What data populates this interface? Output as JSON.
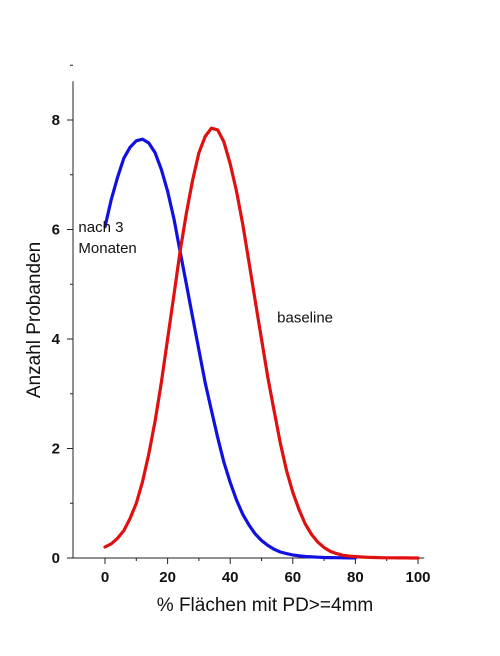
{
  "chart_data": {
    "type": "line",
    "xlabel": "% Flächen mit PD>=4mm",
    "ylabel": "Anzahl Probanden",
    "xlim": [
      -10,
      102
    ],
    "ylim": [
      0,
      9
    ],
    "xticks": [
      0,
      20,
      40,
      60,
      80,
      100
    ],
    "yticks": [
      0,
      2,
      4,
      6,
      8
    ],
    "grid": false,
    "series": [
      {
        "name": "nach 3 Monaten",
        "color": "#1010e0",
        "x": [
          0,
          2,
          4,
          6,
          8,
          10,
          12,
          14,
          16,
          18,
          20,
          22,
          24,
          26,
          28,
          30,
          32,
          34,
          36,
          38,
          40,
          42,
          44,
          46,
          48,
          50,
          52,
          54,
          56,
          58,
          60,
          62,
          64,
          66,
          68,
          70,
          72,
          74,
          76,
          78,
          80
        ],
        "y": [
          6.05,
          6.55,
          6.95,
          7.3,
          7.5,
          7.62,
          7.65,
          7.58,
          7.4,
          7.1,
          6.7,
          6.2,
          5.6,
          5.0,
          4.4,
          3.8,
          3.2,
          2.7,
          2.2,
          1.75,
          1.38,
          1.06,
          0.8,
          0.6,
          0.44,
          0.32,
          0.23,
          0.16,
          0.11,
          0.08,
          0.055,
          0.04,
          0.028,
          0.02,
          0.014,
          0.01,
          0.007,
          0.005,
          0.003,
          0.002,
          0.001
        ]
      },
      {
        "name": "baseline",
        "color": "#e01010",
        "x": [
          0,
          2,
          4,
          6,
          8,
          10,
          12,
          14,
          16,
          18,
          20,
          22,
          24,
          26,
          28,
          30,
          32,
          34,
          36,
          38,
          40,
          42,
          44,
          46,
          48,
          50,
          52,
          54,
          56,
          58,
          60,
          62,
          64,
          66,
          68,
          70,
          72,
          74,
          76,
          78,
          80,
          82,
          84,
          86,
          88,
          90,
          92,
          94,
          96,
          98,
          100
        ],
        "y": [
          0.2,
          0.26,
          0.36,
          0.5,
          0.72,
          1.0,
          1.4,
          1.9,
          2.5,
          3.2,
          4.0,
          4.8,
          5.6,
          6.3,
          6.9,
          7.4,
          7.7,
          7.85,
          7.82,
          7.6,
          7.2,
          6.7,
          6.1,
          5.4,
          4.7,
          4.0,
          3.3,
          2.7,
          2.1,
          1.6,
          1.2,
          0.88,
          0.62,
          0.43,
          0.29,
          0.19,
          0.12,
          0.08,
          0.05,
          0.035,
          0.025,
          0.018,
          0.013,
          0.009,
          0.006,
          0.004,
          0.003,
          0.002,
          0.001,
          0.0005,
          0.0
        ]
      }
    ],
    "annotations": [
      {
        "lines": [
          "nach 3",
          "Monaten"
        ],
        "x": -8.5,
        "y": 5.95
      },
      {
        "lines": [
          "baseline"
        ],
        "x": 55,
        "y": 4.3
      }
    ]
  }
}
